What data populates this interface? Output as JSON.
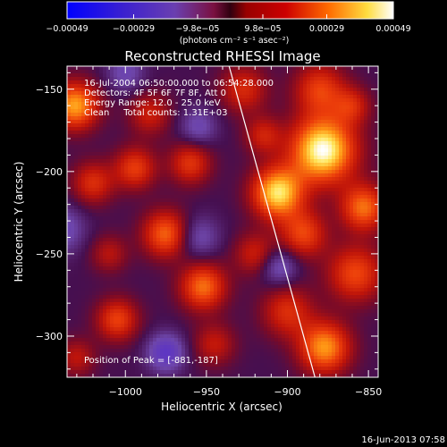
{
  "chart_data": {
    "type": "heatmap",
    "title": "Reconstructed RHESSI Image",
    "xlabel": "Heliocentric X (arcsec)",
    "ylabel": "Heliocentric Y (arcsec)",
    "xlim": [
      -1036,
      -844
    ],
    "ylim": [
      -325,
      -136
    ],
    "xticks": [
      -1000,
      -950,
      -900,
      -850
    ],
    "xtick_labels": [
      "−1000",
      "−950",
      "−900",
      "−850"
    ],
    "yticks": [
      -150,
      -200,
      -250,
      -300
    ],
    "ytick_labels": [
      "−150",
      "−200",
      "−250",
      "−300"
    ],
    "colorbar": {
      "range": [
        -0.00049,
        0.00049
      ],
      "ticks": [
        -0.00049,
        -0.00029,
        -9.8e-05,
        9.8e-05,
        0.00029,
        0.00049
      ],
      "tick_labels": [
        "−0.00049",
        "−0.00029",
        "−9.8e−05",
        "9.8e−05",
        "0.00029",
        "0.00049"
      ],
      "unit_label": "(photons cm⁻² s⁻¹ asec⁻²)",
      "colors": [
        "#0000ff",
        "#6a3fb0",
        "#7a1040",
        "#cc0000",
        "#ff6a00",
        "#ffff80",
        "#ffffff"
      ]
    },
    "annotations": [
      "16-Jul-2004 06:50:00.000 to 06:54:28.000",
      "Detectors: 4F 5F 6F 7F 8F, Att 0",
      "Energy Range: 12.0 - 25.0 keV",
      "Clean     Total counts: 1.31E+03"
    ],
    "peak_label": "Position of Peak = [-881,-187]",
    "peak": [
      -881,
      -187
    ],
    "limb_line": [
      [
        -936,
        -136
      ],
      [
        -883,
        -325
      ]
    ],
    "hotspots": [
      {
        "x": -878,
        "y": -187,
        "v": 1.0,
        "r": 14
      },
      {
        "x": -906,
        "y": -213,
        "v": 0.88,
        "r": 11
      },
      {
        "x": -1031,
        "y": -160,
        "v": 0.75,
        "r": 10
      },
      {
        "x": -877,
        "y": -307,
        "v": 0.72,
        "r": 11
      },
      {
        "x": -853,
        "y": -222,
        "v": 0.62,
        "r": 10
      },
      {
        "x": -952,
        "y": -270,
        "v": 0.62,
        "r": 10
      },
      {
        "x": -975,
        "y": -238,
        "v": 0.6,
        "r": 10
      },
      {
        "x": -858,
        "y": -262,
        "v": 0.52,
        "r": 12
      },
      {
        "x": -890,
        "y": -238,
        "v": 0.5,
        "r": 10
      },
      {
        "x": -1005,
        "y": -290,
        "v": 0.5,
        "r": 9
      },
      {
        "x": -994,
        "y": -198,
        "v": 0.48,
        "r": 9
      },
      {
        "x": -880,
        "y": -150,
        "v": 0.48,
        "r": 11
      },
      {
        "x": -960,
        "y": -195,
        "v": 0.45,
        "r": 9
      },
      {
        "x": -1020,
        "y": -207,
        "v": 0.42,
        "r": 9
      },
      {
        "x": -900,
        "y": -285,
        "v": 0.42,
        "r": 11
      },
      {
        "x": -927,
        "y": -150,
        "v": 0.4,
        "r": 10
      },
      {
        "x": -985,
        "y": -165,
        "v": 0.35,
        "r": 9
      },
      {
        "x": -920,
        "y": -250,
        "v": 0.35,
        "r": 9
      },
      {
        "x": -945,
        "y": -305,
        "v": 0.32,
        "r": 9
      },
      {
        "x": -915,
        "y": -178,
        "v": 0.35,
        "r": 8
      },
      {
        "x": -1030,
        "y": -313,
        "v": 0.3,
        "r": 8
      },
      {
        "x": -1010,
        "y": -250,
        "v": 0.28,
        "r": 8
      },
      {
        "x": -860,
        "y": -160,
        "v": 0.35,
        "r": 8
      },
      {
        "x": -955,
        "y": -240,
        "v": -0.3,
        "r": 9
      },
      {
        "x": -975,
        "y": -310,
        "v": -0.5,
        "r": 8
      },
      {
        "x": -905,
        "y": -258,
        "v": -0.35,
        "r": 8
      },
      {
        "x": -1040,
        "y": -235,
        "v": -0.35,
        "r": 10
      },
      {
        "x": -955,
        "y": -173,
        "v": -0.3,
        "r": 8
      },
      {
        "x": -1000,
        "y": -140,
        "v": -0.3,
        "r": 8
      }
    ]
  },
  "footer": {
    "timestamp": "16-Jun-2013 07:58"
  }
}
